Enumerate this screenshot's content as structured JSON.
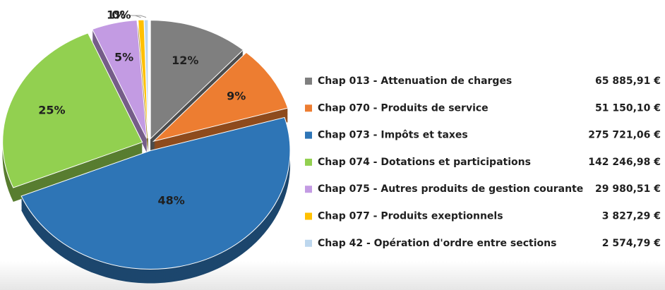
{
  "chart_data": {
    "type": "pie",
    "categories": [
      "Chap 013 - Attenuation de charges",
      "Chap 070 - Produits de service",
      "Chap 073 - Impôts et taxes",
      "Chap 074 - Dotations et participations",
      "Chap 075 - Autres produits de gestion courante",
      "Chap 077 - Produits exeptionnels",
      "Chap 42 - Opération d'ordre entre sections"
    ],
    "values": [
      65885.91,
      51150.1,
      275721.06,
      142246.98,
      29980.51,
      3827.29,
      2574.79
    ],
    "value_labels": [
      "65 885,91 €",
      "51 150,10 €",
      "275 721,06 €",
      "142 246,98 €",
      "29 980,51 €",
      "3 827,29 €",
      "2 574,79 €"
    ],
    "percent_labels": [
      "12%",
      "9%",
      "48%",
      "25%",
      "5%",
      "1%",
      "0%"
    ],
    "colors": [
      "#7f7f7f",
      "#ed7d31",
      "#2e75b6",
      "#92d050",
      "#c39be3",
      "#ffc000",
      "#bdd7ee"
    ],
    "legend": "right"
  }
}
